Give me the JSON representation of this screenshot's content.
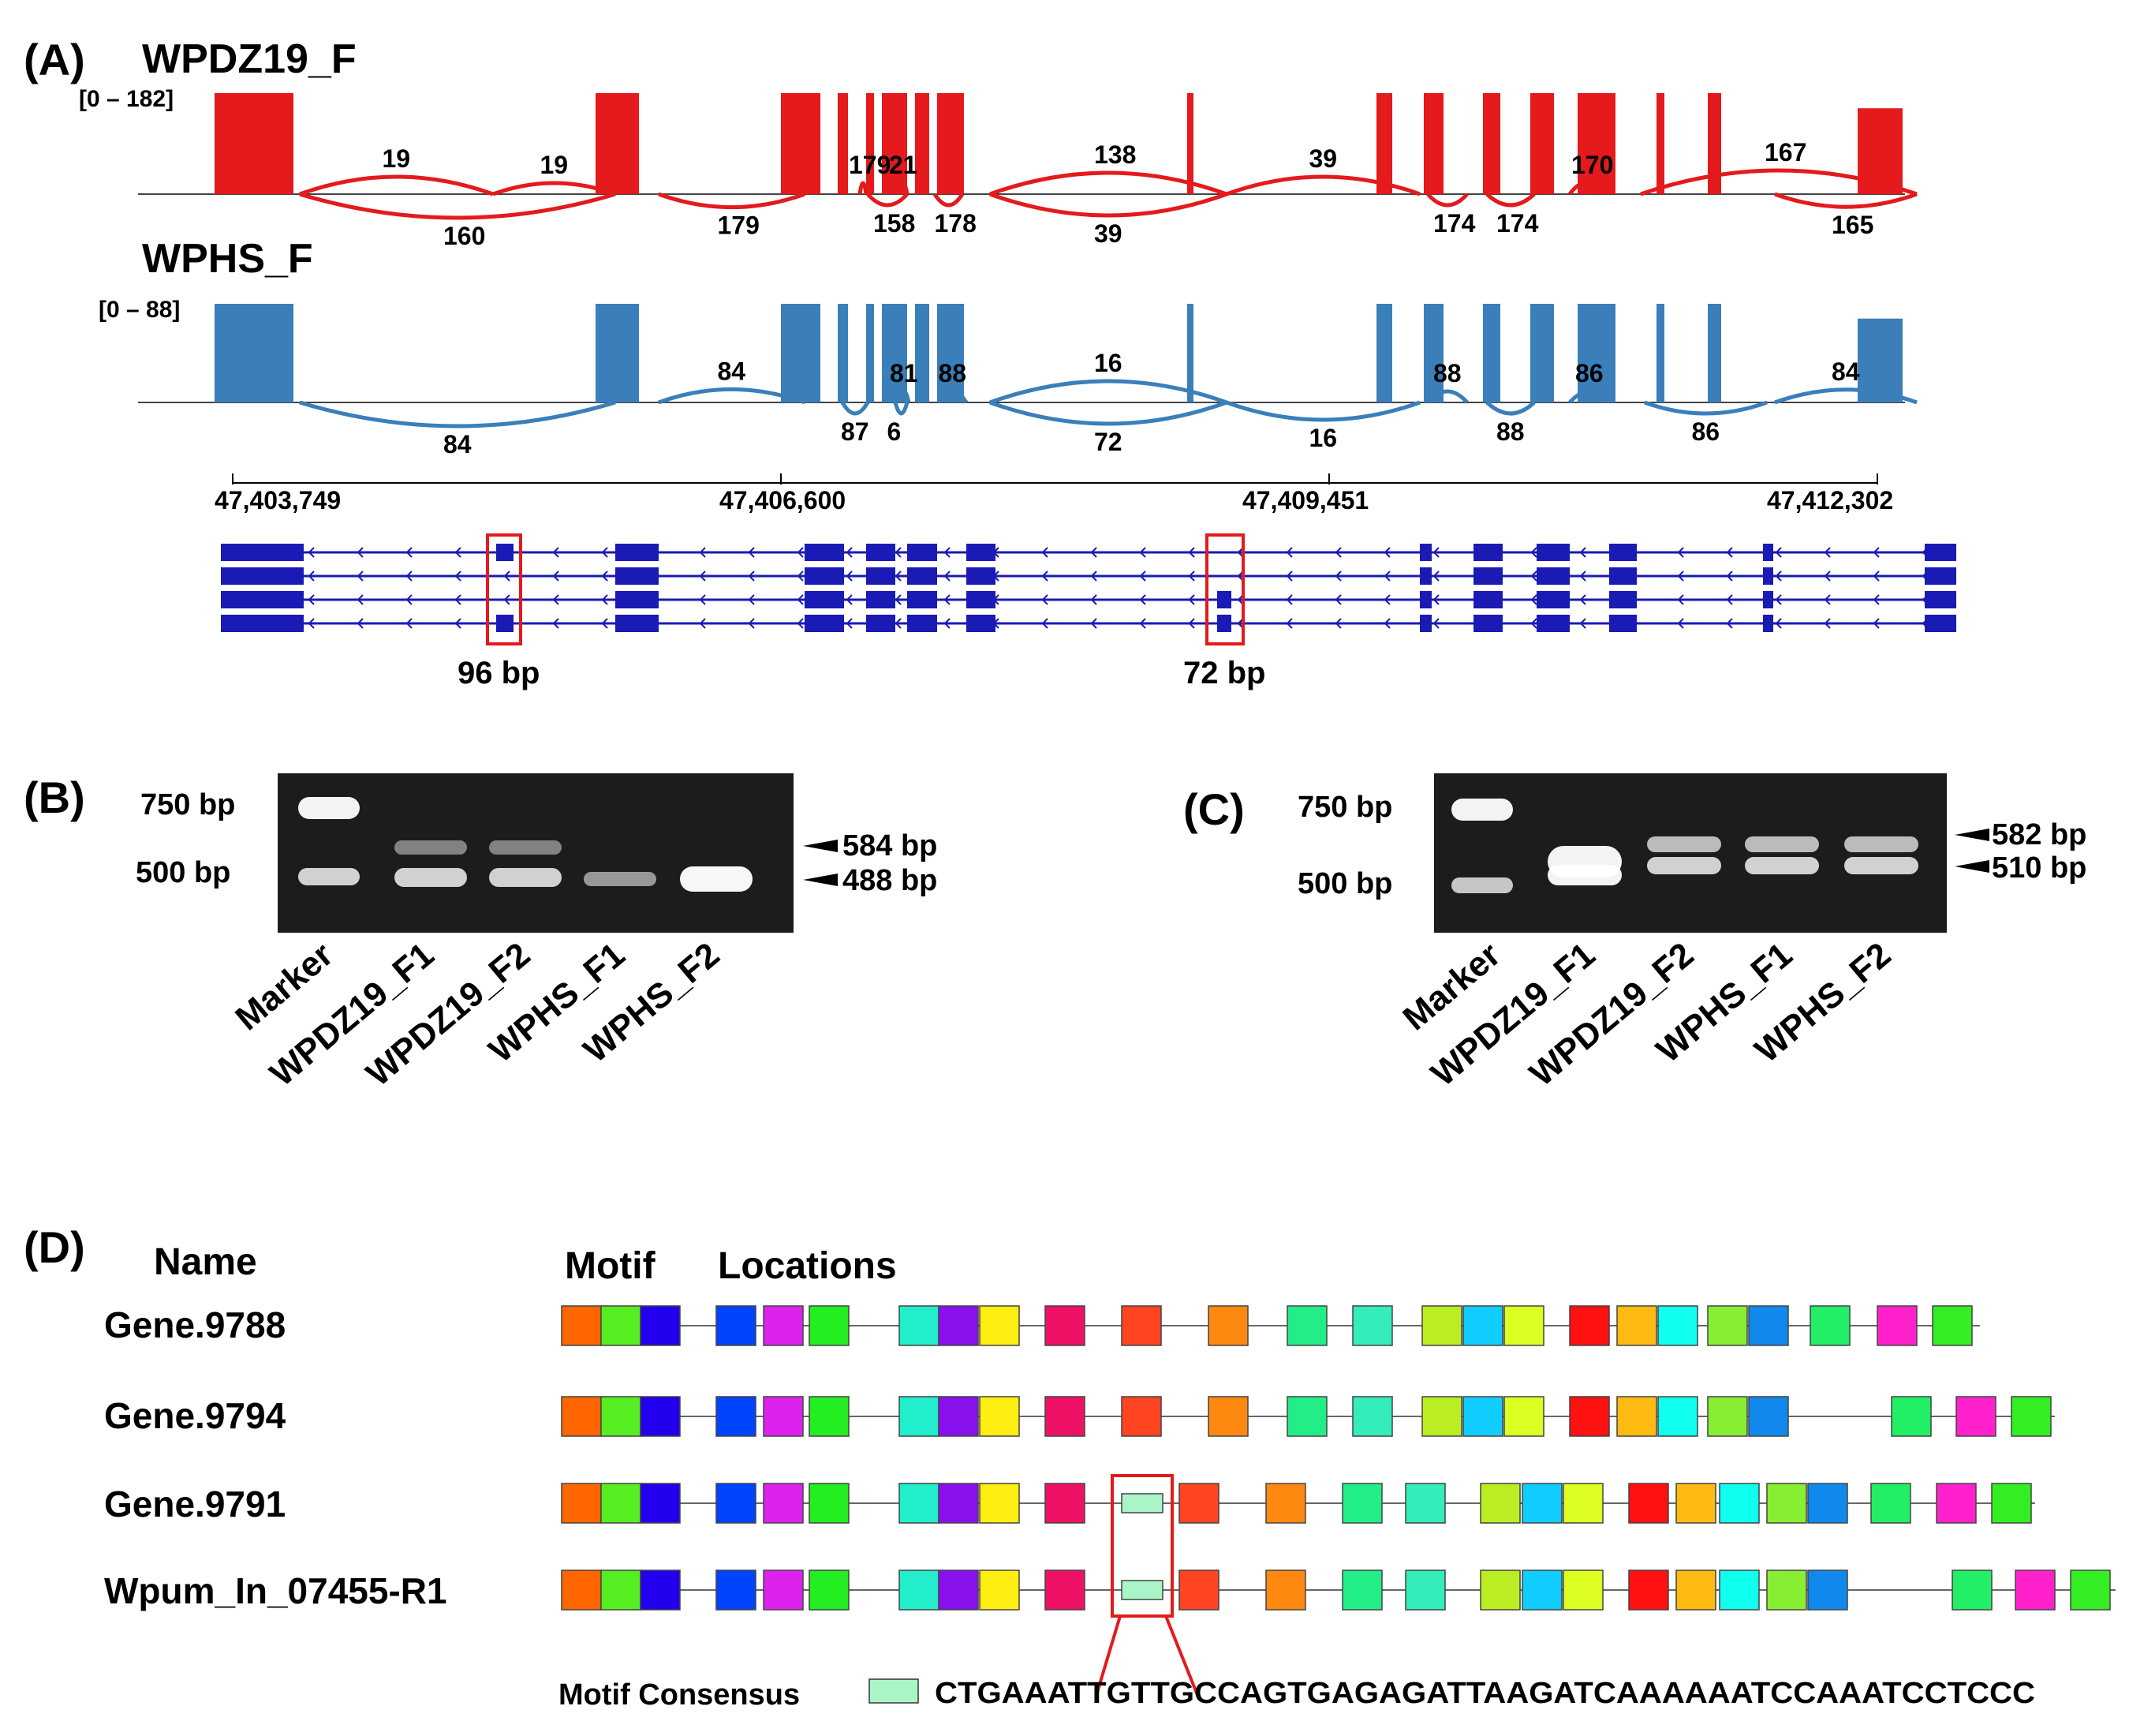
{
  "panelA": {
    "label": "(A)",
    "tracks": [
      {
        "name": "WPDZ19_F",
        "range": "[0 – 182]",
        "color": "#e41a1c",
        "juncs_above": [
          {
            "v": "19",
            "from": 380,
            "to": 625
          },
          {
            "v": "19",
            "from": 625,
            "to": 780
          },
          {
            "v": "179",
            "from": 1090,
            "to": 1098
          },
          {
            "v": "21",
            "from": 1140,
            "to": 1150
          },
          {
            "v": "138",
            "from": 1255,
            "to": 1555
          },
          {
            "v": "39",
            "from": 1555,
            "to": 1800
          },
          {
            "v": "170",
            "from": 1990,
            "to": 2030
          },
          {
            "v": "167",
            "from": 2080,
            "to": 2430
          }
        ],
        "juncs_below": [
          {
            "v": "160",
            "from": 380,
            "to": 780
          },
          {
            "v": "179",
            "from": 835,
            "to": 1020
          },
          {
            "v": "158",
            "from": 1100,
            "to": 1150
          },
          {
            "v": "178",
            "from": 1185,
            "to": 1220
          },
          {
            "v": "39",
            "from": 1255,
            "to": 1555
          },
          {
            "v": "174",
            "from": 1810,
            "to": 1860
          },
          {
            "v": "174",
            "from": 1885,
            "to": 1945
          },
          {
            "v": "165",
            "from": 2250,
            "to": 2430
          }
        ]
      },
      {
        "name": "WPHS_F",
        "range": "[0 – 88]",
        "color": "#3a7fba",
        "juncs_above": [
          {
            "v": "84",
            "from": 835,
            "to": 1020
          },
          {
            "v": "81",
            "from": 1140,
            "to": 1152
          },
          {
            "v": "88",
            "from": 1190,
            "to": 1225
          },
          {
            "v": "16",
            "from": 1255,
            "to": 1555
          },
          {
            "v": "88",
            "from": 1810,
            "to": 1860
          },
          {
            "v": "86",
            "from": 1990,
            "to": 2040
          },
          {
            "v": "84",
            "from": 2250,
            "to": 2430
          }
        ],
        "juncs_below": [
          {
            "v": "84",
            "from": 380,
            "to": 780
          },
          {
            "v": "87",
            "from": 1068,
            "to": 1100
          },
          {
            "v": "6",
            "from": 1135,
            "to": 1150
          },
          {
            "v": "72",
            "from": 1255,
            "to": 1555
          },
          {
            "v": "16",
            "from": 1555,
            "to": 1800
          },
          {
            "v": "88",
            "from": 1885,
            "to": 1945
          },
          {
            "v": "86",
            "from": 2085,
            "to": 2240
          }
        ]
      }
    ],
    "axis": {
      "ticks": [
        "47,403,749",
        "47,406,600",
        "47,409,451",
        "47,412,302"
      ]
    },
    "gene_model": {
      "color": "#1a1ab4",
      "box_labels": [
        "96 bp",
        "72 bp"
      ]
    }
  },
  "panelB": {
    "label": "(B)",
    "markers": [
      "750 bp",
      "500 bp"
    ],
    "bands": [
      "584 bp",
      "488 bp"
    ],
    "lanes": [
      "Marker",
      "WPDZ19_F1",
      "WPDZ19_F2",
      "WPHS_F1",
      "WPHS_F2"
    ]
  },
  "panelC": {
    "label": "(C)",
    "markers": [
      "750 bp",
      "500 bp"
    ],
    "bands": [
      "582 bp",
      "510 bp"
    ],
    "lanes": [
      "Marker",
      "WPDZ19_F1",
      "WPDZ19_F2",
      "WPHS_F1",
      "WPHS_F2"
    ]
  },
  "panelD": {
    "label": "(D)",
    "name_header": "Name",
    "motif_header": "Motif",
    "locations_header": "Locations",
    "genes": [
      "Gene.9788",
      "Gene.9794",
      "Gene.9791",
      "Wpum_In_07455-R1"
    ],
    "consensus_label": "Motif Consensus",
    "consensus_seq": "CTGAAATTGTTGCCAGTGAGAGATTAAGATCAAAAAATCCAAATCCTCCC",
    "motif_colors": [
      "#ff6600",
      "#55ee22",
      "#2200ee",
      "#0044ff",
      "#dd22ee",
      "#22ee22",
      "#22eecc",
      "#8811ee",
      "#ffee11",
      "#ee1166",
      "#ff4422",
      "#ff8811",
      "#22ee88",
      "#33eebb",
      "#bbee22",
      "#11ccff",
      "#ddff22",
      "#ff1111",
      "#ffbb11",
      "#11ffee",
      "#88ee33",
      "#1188ee",
      "#22ee66",
      "#ff22cc",
      "#33ee22",
      "#aaf5c8"
    ]
  }
}
